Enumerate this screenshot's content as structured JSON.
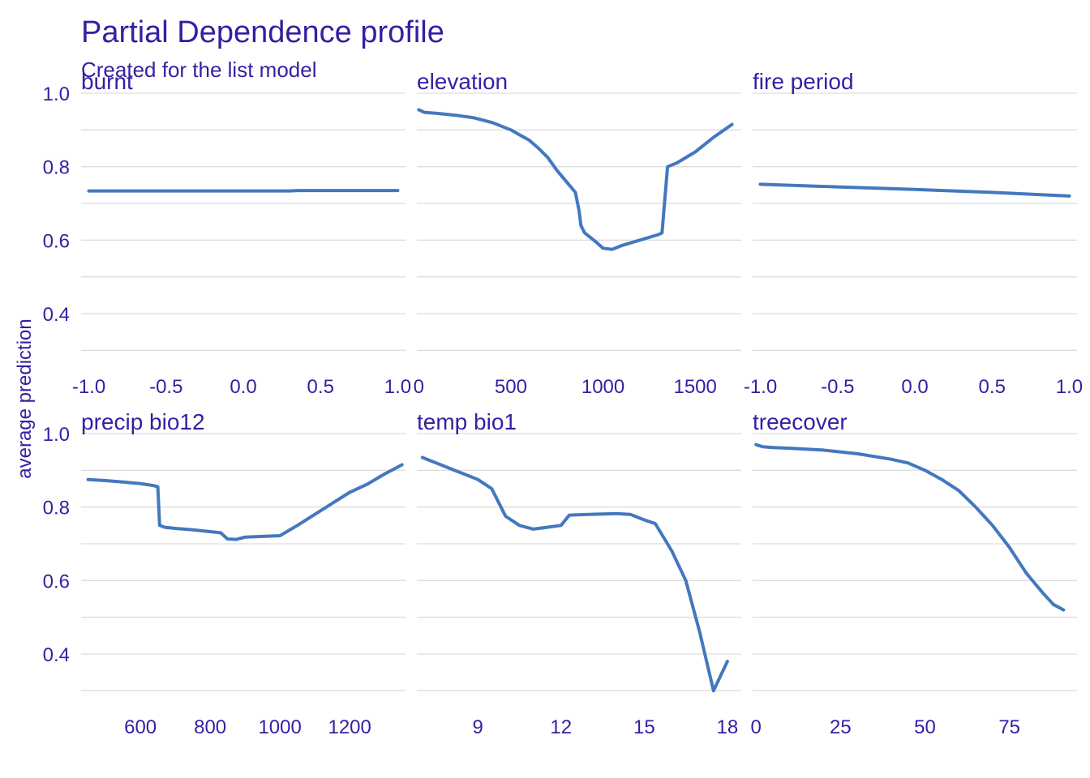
{
  "chart_data": {
    "type": "line",
    "title": "Partial Dependence profile",
    "subtitle": "Created for the list model",
    "ylabel": "average prediction",
    "ylim": [
      0.25,
      1.0
    ],
    "y_ticks": [
      1.0,
      0.8,
      0.6,
      0.4
    ],
    "y_tick_labels": [
      "1.0",
      "0.8",
      "0.6",
      "0.4"
    ],
    "grid": true,
    "colors": {
      "line": "#4378bf",
      "text": "#371ea3",
      "grid": "#dddddd"
    },
    "panels": [
      {
        "name": "burnt",
        "xlim": [
          -1.05,
          1.05
        ],
        "x_ticks": [
          -1.0,
          -0.5,
          0.0,
          0.5,
          1.0
        ],
        "x_tick_labels": [
          "-1.0",
          "-0.5",
          "0.0",
          "0.5",
          "1.0"
        ],
        "x": [
          -1.0,
          -0.5,
          0.0,
          0.3,
          0.35,
          1.0
        ],
        "y": [
          0.734,
          0.734,
          0.734,
          0.734,
          0.735,
          0.735
        ]
      },
      {
        "name": "elevation",
        "xlim": [
          -10,
          1750
        ],
        "x_ticks": [
          0,
          500,
          1000,
          1500
        ],
        "x_tick_labels": [
          "0",
          "500",
          "1000",
          "1500"
        ],
        "x": [
          0,
          30,
          100,
          200,
          300,
          400,
          500,
          600,
          650,
          700,
          750,
          800,
          850,
          870,
          880,
          900,
          950,
          1000,
          1050,
          1100,
          1200,
          1300,
          1320,
          1350,
          1400,
          1500,
          1600,
          1700
        ],
        "y": [
          0.955,
          0.948,
          0.945,
          0.94,
          0.933,
          0.92,
          0.9,
          0.872,
          0.85,
          0.825,
          0.79,
          0.76,
          0.73,
          0.68,
          0.64,
          0.62,
          0.6,
          0.578,
          0.575,
          0.585,
          0.6,
          0.615,
          0.62,
          0.8,
          0.81,
          0.84,
          0.88,
          0.915
        ]
      },
      {
        "name": "fire  period",
        "xlim": [
          -1.05,
          1.05
        ],
        "x_ticks": [
          -1.0,
          -0.5,
          0.0,
          0.5,
          1.0
        ],
        "x_tick_labels": [
          "-1.0",
          "-0.5",
          "0.0",
          "0.5",
          "1.0"
        ],
        "x": [
          -1.0,
          -0.5,
          0.0,
          0.5,
          1.0
        ],
        "y": [
          0.752,
          0.745,
          0.738,
          0.73,
          0.72
        ]
      },
      {
        "name": "precip  bio12",
        "xlim": [
          430,
          1360
        ],
        "x_ticks": [
          600,
          800,
          1000,
          1200
        ],
        "x_tick_labels": [
          "600",
          "800",
          "1000",
          "1200"
        ],
        "x": [
          450,
          500,
          550,
          600,
          640,
          650,
          655,
          670,
          700,
          750,
          800,
          830,
          850,
          875,
          900,
          950,
          1000,
          1050,
          1100,
          1150,
          1200,
          1250,
          1300,
          1350
        ],
        "y": [
          0.875,
          0.872,
          0.868,
          0.864,
          0.858,
          0.855,
          0.75,
          0.745,
          0.742,
          0.738,
          0.733,
          0.73,
          0.713,
          0.712,
          0.718,
          0.72,
          0.722,
          0.75,
          0.78,
          0.81,
          0.84,
          0.862,
          0.89,
          0.915
        ]
      },
      {
        "name": "temp  bio1",
        "xlim": [
          6.8,
          18.5
        ],
        "x_ticks": [
          9,
          12,
          15,
          18
        ],
        "x_tick_labels": [
          "9",
          "12",
          "15",
          "18"
        ],
        "x": [
          7.0,
          7.5,
          8.0,
          8.5,
          9.0,
          9.5,
          10.0,
          10.5,
          11.0,
          11.5,
          12.0,
          12.3,
          13.0,
          14.0,
          14.5,
          15.0,
          15.4,
          16.0,
          16.5,
          17.0,
          17.5,
          18.0
        ],
        "y": [
          0.935,
          0.92,
          0.905,
          0.89,
          0.875,
          0.85,
          0.775,
          0.75,
          0.74,
          0.745,
          0.75,
          0.778,
          0.78,
          0.782,
          0.78,
          0.765,
          0.755,
          0.68,
          0.6,
          0.46,
          0.3,
          0.38
        ]
      },
      {
        "name": "treecover",
        "xlim": [
          -1,
          95
        ],
        "x_ticks": [
          0,
          25,
          50,
          75
        ],
        "x_tick_labels": [
          "0",
          "25",
          "50",
          "75"
        ],
        "x": [
          0,
          2,
          5,
          10,
          20,
          30,
          40,
          45,
          50,
          55,
          60,
          65,
          70,
          75,
          80,
          85,
          88,
          90,
          91
        ],
        "y": [
          0.97,
          0.964,
          0.962,
          0.96,
          0.955,
          0.945,
          0.93,
          0.92,
          0.9,
          0.875,
          0.845,
          0.8,
          0.75,
          0.69,
          0.62,
          0.565,
          0.535,
          0.525,
          0.52
        ]
      }
    ]
  }
}
